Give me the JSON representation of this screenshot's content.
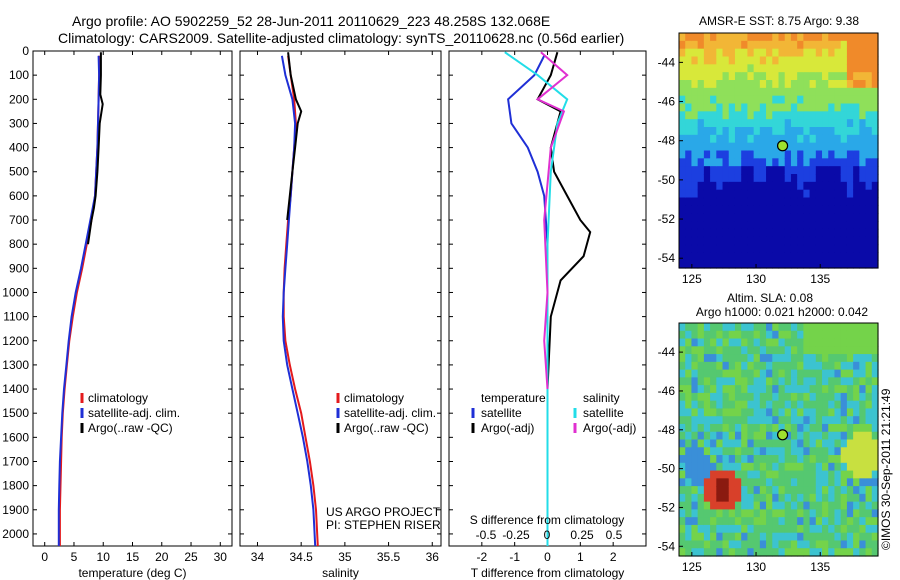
{
  "header": {
    "title_line1": "Argo profile: AO 5902259_52 28-Jun-2011 20110629_223 48.258S 132.068E",
    "title_line2": "Climatology: CARS2009. Satellite-adjusted climatology: synTS_20110628.nc (0.56d earlier)"
  },
  "credit": "©IMOS 30-Sep-2011 21:21:49",
  "colors": {
    "climatology": "#e41a1c",
    "satellite": "#1f2fd6",
    "argo": "#000000",
    "s_satellite": "#22dde8",
    "s_argo": "#e030d0"
  },
  "chart_data": [
    {
      "id": "temperature",
      "type": "line",
      "xlabel": "temperature (deg C)",
      "ylabel": "",
      "xlim": [
        -2,
        32
      ],
      "ylim": [
        2050,
        0
      ],
      "xticks": [
        "0",
        "5",
        "10",
        "15",
        "20",
        "25",
        "30"
      ],
      "xtick_values": [
        0,
        5,
        10,
        15,
        20,
        25,
        30
      ],
      "yticks": [
        "0",
        "100",
        "200",
        "300",
        "400",
        "500",
        "600",
        "700",
        "800",
        "900",
        "1000",
        "1100",
        "1200",
        "1300",
        "1400",
        "1500",
        "1600",
        "1700",
        "1800",
        "1900",
        "2000"
      ],
      "ytick_values": [
        0,
        100,
        200,
        300,
        400,
        500,
        600,
        700,
        800,
        900,
        1000,
        1100,
        1200,
        1300,
        1400,
        1500,
        1600,
        1700,
        1800,
        1900,
        2000
      ],
      "legend": [
        "climatology",
        "satellite-adj. clim.",
        "Argo(..raw -QC)"
      ],
      "series": [
        {
          "name": "climatology",
          "color_key": "climatology",
          "x": [
            9.3,
            9.3,
            9.2,
            9.1,
            9.0,
            8.8,
            8.6,
            8.3,
            8.0,
            7.2,
            6.4,
            5.5,
            4.8,
            4.2,
            3.8,
            3.4,
            3.1,
            2.9,
            2.8,
            2.7,
            2.6,
            2.6
          ],
          "y": [
            20,
            100,
            200,
            300,
            400,
            500,
            600,
            650,
            700,
            800,
            900,
            1000,
            1100,
            1200,
            1300,
            1400,
            1500,
            1600,
            1700,
            1800,
            1900,
            2050
          ]
        },
        {
          "name": "satellite-adj. clim.",
          "color_key": "satellite",
          "x": [
            9.2,
            9.3,
            9.2,
            9.1,
            9.0,
            8.8,
            8.6,
            8.2,
            7.8,
            7.0,
            6.2,
            5.3,
            4.6,
            4.1,
            3.7,
            3.3,
            3.0,
            2.8,
            2.6,
            2.5,
            2.4,
            2.4
          ],
          "y": [
            20,
            100,
            200,
            300,
            400,
            500,
            600,
            650,
            700,
            800,
            900,
            1000,
            1100,
            1200,
            1300,
            1400,
            1500,
            1600,
            1700,
            1800,
            1900,
            2050
          ]
        },
        {
          "name": "Argo(..raw -QC)",
          "color_key": "argo",
          "x": [
            9.6,
            9.6,
            9.5,
            9.9,
            9.4,
            9.2,
            9.0,
            8.7,
            8.4,
            8.0,
            7.4
          ],
          "y": [
            5,
            100,
            180,
            220,
            300,
            400,
            500,
            600,
            650,
            700,
            800
          ]
        }
      ]
    },
    {
      "id": "salinity",
      "type": "line",
      "xlabel": "salinity",
      "ylabel": "",
      "xlim": [
        33.8,
        36.1
      ],
      "ylim": [
        2050,
        0
      ],
      "xticks": [
        "34",
        "34.5",
        "35",
        "35.5",
        "36"
      ],
      "xtick_values": [
        34,
        34.5,
        35,
        35.5,
        36
      ],
      "legend": [
        "climatology",
        "satellite-adj. clim.",
        "Argo(..raw -QC)"
      ],
      "annotation": [
        "US ARGO PROJECT",
        "PI: STEPHEN RISER"
      ],
      "series": [
        {
          "name": "climatology",
          "color_key": "climatology",
          "x": [
            34.35,
            34.38,
            34.42,
            34.44,
            34.42,
            34.4,
            34.38,
            34.35,
            34.33,
            34.31,
            34.3,
            34.3,
            34.32,
            34.37,
            34.43,
            34.5,
            34.55,
            34.6,
            34.64,
            34.67,
            34.69
          ],
          "y": [
            20,
            100,
            200,
            300,
            400,
            500,
            600,
            700,
            800,
            900,
            1000,
            1100,
            1200,
            1300,
            1400,
            1500,
            1600,
            1700,
            1800,
            1900,
            2050
          ]
        },
        {
          "name": "satellite-adj. clim.",
          "color_key": "satellite",
          "x": [
            34.28,
            34.32,
            34.4,
            34.43,
            34.42,
            34.4,
            34.38,
            34.36,
            34.34,
            34.32,
            34.3,
            34.29,
            34.3,
            34.34,
            34.4,
            34.46,
            34.52,
            34.57,
            34.61,
            34.64,
            34.66
          ],
          "y": [
            20,
            100,
            200,
            300,
            400,
            500,
            600,
            700,
            800,
            900,
            1000,
            1100,
            1200,
            1300,
            1400,
            1500,
            1600,
            1700,
            1800,
            1900,
            2050
          ]
        },
        {
          "name": "Argo(..raw -QC)",
          "color_key": "argo",
          "x": [
            34.35,
            34.38,
            34.44,
            34.5,
            34.46,
            34.43,
            34.4,
            34.37,
            34.34
          ],
          "y": [
            5,
            100,
            200,
            250,
            300,
            400,
            500,
            600,
            700
          ]
        }
      ]
    },
    {
      "id": "difference",
      "type": "line",
      "xlabel": "T difference from climatology",
      "xlabel_top": "S difference from climatology",
      "xlim": [
        -3,
        3
      ],
      "ylim": [
        2050,
        0
      ],
      "xticks": [
        "-2",
        "-1",
        "0",
        "1",
        "2"
      ],
      "xtick_values": [
        -2,
        -1,
        0,
        1,
        2
      ],
      "xticks_s": [
        "-0.5",
        "-0.25",
        "0",
        "0.25",
        "0.5"
      ],
      "xticks_s_values": [
        -0.5,
        -0.25,
        0,
        0.25,
        0.5
      ],
      "legend_t_title": "temperature",
      "legend_s_title": "salinity",
      "legend_t": [
        "satellite",
        "Argo(-adj)"
      ],
      "legend_s": [
        "satellite",
        "Argo(-adj)"
      ],
      "series": [
        {
          "name": "satellite",
          "group": "temperature",
          "color_key": "satellite",
          "x": [
            -0.1,
            -0.4,
            -1.2,
            -1.1,
            -0.6,
            -0.3,
            -0.1,
            0.0,
            0.0,
            0.0,
            0.0,
            0.0
          ],
          "y": [
            20,
            100,
            200,
            300,
            400,
            500,
            600,
            800,
            1000,
            1400,
            1800,
            2050
          ]
        },
        {
          "name": "Argo(-adj)",
          "group": "temperature",
          "color_key": "argo",
          "x": [
            0.3,
            0.1,
            -0.3,
            0.4,
            0.1,
            0.2,
            0.6,
            1.0,
            1.3,
            1.1,
            0.4,
            0.1,
            0.0
          ],
          "y": [
            5,
            100,
            200,
            250,
            400,
            500,
            600,
            700,
            750,
            850,
            950,
            1100,
            1400
          ]
        },
        {
          "name": "satellite",
          "group": "salinity",
          "color_key": "s_satellite",
          "x": [
            -1.3,
            -0.3,
            0.6,
            0.3,
            0.1,
            0.0,
            0.0,
            0.0,
            0.0,
            0.0
          ],
          "y": [
            5,
            100,
            200,
            300,
            500,
            800,
            1100,
            1400,
            1800,
            2050
          ]
        },
        {
          "name": "Argo(-adj)",
          "group": "salinity",
          "color_key": "s_argo",
          "x": [
            -0.2,
            0.6,
            -0.3,
            0.5,
            0.1,
            -0.1,
            0.0,
            -0.1,
            0.0
          ],
          "y": [
            5,
            100,
            200,
            250,
            400,
            700,
            1000,
            1200,
            1400
          ]
        }
      ]
    },
    {
      "id": "sst_map",
      "type": "heatmap",
      "title": "AMSR-E SST: 8.75 Argo: 9.38",
      "xticks": [
        "125",
        "130",
        "135"
      ],
      "xtick_values": [
        125,
        130,
        135
      ],
      "yticks": [
        "-44",
        "-46",
        "-48",
        "-50",
        "-52",
        "-54"
      ],
      "ytick_values": [
        -44,
        -46,
        -48,
        -50,
        -52,
        -54
      ],
      "xlim": [
        124,
        139.5
      ],
      "ylim": [
        -54.5,
        -42.5
      ],
      "marker": {
        "lon": 132.068,
        "lat": -48.258
      }
    },
    {
      "id": "sla_map",
      "type": "heatmap",
      "title_line1": "Altim. SLA: 0.08",
      "title_line2": "Argo h1000: 0.021 h2000: 0.042",
      "xticks": [
        "125",
        "130",
        "135"
      ],
      "xtick_values": [
        125,
        130,
        135
      ],
      "yticks": [
        "-44",
        "-46",
        "-48",
        "-50",
        "-52",
        "-54"
      ],
      "ytick_values": [
        -44,
        -46,
        -48,
        -50,
        -52,
        -54
      ],
      "xlim": [
        124,
        139.5
      ],
      "ylim": [
        -54.5,
        -42.5
      ],
      "marker": {
        "lon": 132.068,
        "lat": -48.258
      }
    }
  ]
}
